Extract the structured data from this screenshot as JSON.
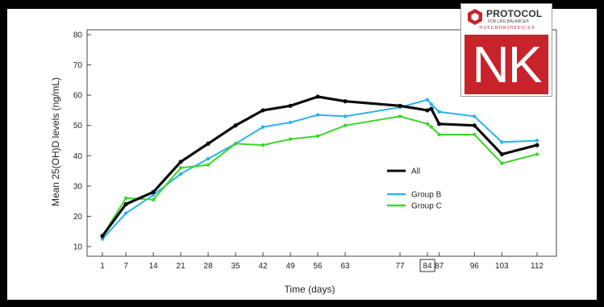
{
  "colors": {
    "all": "#0a0a0a",
    "group_b": "#2bb3e8",
    "group_c": "#3dd62c",
    "frame": "#000000",
    "logo_red": "#c8232a"
  },
  "logo": {
    "brand": "PROTOCOL",
    "tagline": "FOR LIFE BALANCE®",
    "sub": "NATUROKINETICS®",
    "mark": "NK",
    "icon": "hexagon-icon"
  },
  "chart_data": {
    "type": "line",
    "xlabel": "Time (days)",
    "ylabel": "Mean 25(OH)D levels (ng/mL)",
    "ylim": [
      10,
      80
    ],
    "yticks": [
      10,
      20,
      30,
      40,
      50,
      60,
      70,
      80
    ],
    "xticks": [
      1,
      7,
      14,
      21,
      28,
      35,
      42,
      49,
      56,
      63,
      77,
      84,
      87,
      96,
      103,
      112
    ],
    "boxed_tick": 84,
    "grid": false,
    "legend_position": "right",
    "series": [
      {
        "name": "All",
        "color_key": "all",
        "x": [
          1,
          7,
          14,
          21,
          28,
          35,
          42,
          49,
          56,
          63,
          77,
          84,
          85,
          87,
          96,
          103,
          112
        ],
        "y": [
          13.5,
          24,
          28,
          38,
          44,
          50,
          55,
          56.5,
          59.5,
          58,
          56.5,
          55,
          55.5,
          50.5,
          50,
          40.5,
          43.5
        ]
      },
      {
        "name": "Group B",
        "color_key": "group_b",
        "x": [
          1,
          7,
          14,
          21,
          28,
          35,
          42,
          49,
          56,
          63,
          77,
          84,
          85,
          87,
          96,
          103,
          112
        ],
        "y": [
          12.5,
          21,
          27,
          34,
          39,
          44,
          49.5,
          51,
          53.5,
          53,
          56,
          58.5,
          57,
          54.5,
          53,
          44.5,
          45
        ]
      },
      {
        "name": "Group C",
        "color_key": "group_c",
        "x": [
          1,
          7,
          14,
          21,
          28,
          35,
          42,
          49,
          56,
          63,
          77,
          84,
          85,
          87,
          96,
          103,
          112
        ],
        "y": [
          13.5,
          26,
          25.5,
          36,
          37,
          44,
          43.5,
          45.5,
          46.5,
          50,
          53,
          50.5,
          49.5,
          47,
          47,
          37.5,
          40.5
        ]
      }
    ]
  }
}
